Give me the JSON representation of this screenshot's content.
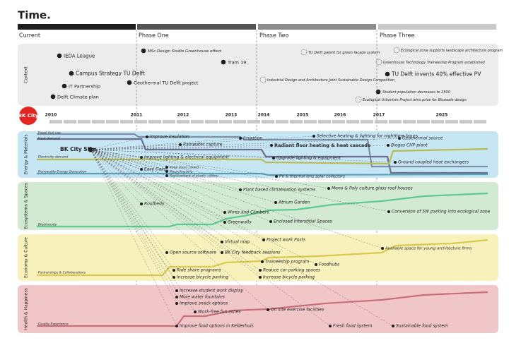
{
  "title": "Time.",
  "phases": [
    "Current",
    "Phase One",
    "Phase Two",
    "Phase Three"
  ],
  "context": {
    "title": "Context",
    "items": [
      "IEDA League",
      "Campus Strategy TU Delft",
      "IT Partnership",
      "Delft Climate plan",
      "MSc Design Studio Greenhouse effect",
      "Geothermal TU Delft project",
      "Tram 19",
      "TU Delft patent for green facade system",
      "Industrial Design and Architecture Joint Sustainable Design Competition",
      "Ecological zone supports landscape architecture program",
      "Greenhouse Technology Traineeship Program established",
      "TU Delft invents 40% effective PV",
      "Student population decreases to 2500",
      "Ecological Urbanism Project wins prize for Bioswale design"
    ]
  },
  "timeline": {
    "start": "BK City",
    "years": [
      "2010",
      "2011",
      "2012",
      "2013",
      "2014",
      "2015",
      "2016",
      "2017",
      "2025"
    ]
  },
  "center": "BK City Slim",
  "panels": [
    {
      "title": "Energy & Materials",
      "series": [
        "Fossil fuel use",
        "Heat demand",
        "Electricity demand",
        "Renewable Energy Generation"
      ],
      "events": [
        "Improve insulation",
        "Rainwater capture",
        "Irrigation",
        "Selective heating & lighting for nighttime hours",
        "Radiant floor heating & heat cascade",
        "Geothermal source",
        "Biogas CHP plant",
        "Improve lighting & electrical equipment",
        "Upgrade lighting & equipment",
        "Ground coupled heat exchangers",
        "Easy Gains",
        "Keep doors closed",
        "Recycling bins",
        "Replacement of plastic cutlery",
        "PV & thermal lens solar collectors"
      ]
    },
    {
      "title": "Ecosystems & Spaces",
      "series": [
        "Biodiversity"
      ],
      "events": [
        "Plant based climatisation systems",
        "Mono & Poly culture glass roof houses",
        "Roofbeds",
        "Atrium Garden",
        "Conversion of 5W parking into ecological zone",
        "Wires and Climbers",
        "Greenwalls",
        "Enclosed Interstitial Spaces"
      ]
    },
    {
      "title": "Economy & Culture",
      "series": [
        "Partnerships & Collaborations"
      ],
      "events": [
        "Virtual map",
        "Project work Posts",
        "Open source software",
        "BK City feedback sessions",
        "Available space for young architecture firms",
        "Traineeship program",
        "Foodhubs",
        "Ride share programs",
        "Reduce car parking spaces",
        "Increase bicycle parking",
        "Increase bicycle parking"
      ]
    },
    {
      "title": "Health & Happiness",
      "series": [
        "Quality Experience"
      ],
      "events": [
        "Increase student work display",
        "More water fountains",
        "Improve snack options",
        "Work-free fun zones",
        "On site exercise facilities",
        "Improve food options in Kelderhuis",
        "Fresh food system",
        "Sustainable food system"
      ]
    }
  ]
}
